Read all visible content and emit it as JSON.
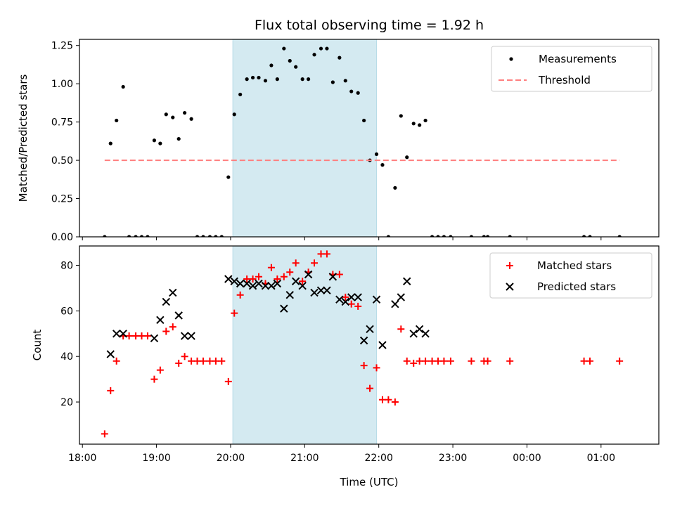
{
  "figure": {
    "title": "Flux total observing time = 1.92 h",
    "xlabel": "Time (UTC)",
    "x_tick_labels": [
      "18:00",
      "19:00",
      "20:00",
      "21:00",
      "22:00",
      "23:00",
      "00:00",
      "01:00"
    ]
  },
  "chart_data": [
    {
      "type": "scatter",
      "ylabel": "Matched/Predicted stars",
      "xlim_hours": [
        17.96,
        25.78
      ],
      "ylim": [
        0,
        1.29
      ],
      "y_ticks": [
        0.0,
        0.25,
        0.5,
        0.75,
        1.0,
        1.25
      ],
      "y_tick_labels": [
        "0.00",
        "0.25",
        "0.50",
        "0.75",
        "1.00",
        "1.25"
      ],
      "shaded_span_hours": [
        20.03,
        21.97
      ],
      "shaded_color": "#d4eaf1",
      "legend": {
        "placement": "upper right",
        "entries": [
          "Measurements",
          "Threshold"
        ]
      },
      "series": [
        {
          "name": "Measurements",
          "marker": "dot",
          "color": "#000000",
          "points": [
            [
              18.3,
              0.0
            ],
            [
              18.38,
              0.61
            ],
            [
              18.46,
              0.76
            ],
            [
              18.55,
              0.98
            ],
            [
              18.63,
              0.0
            ],
            [
              18.72,
              0.0
            ],
            [
              18.8,
              0.0
            ],
            [
              18.88,
              0.0
            ],
            [
              18.97,
              0.63
            ],
            [
              19.05,
              0.61
            ],
            [
              19.13,
              0.8
            ],
            [
              19.22,
              0.78
            ],
            [
              19.3,
              0.64
            ],
            [
              19.38,
              0.81
            ],
            [
              19.47,
              0.77
            ],
            [
              19.55,
              0.0
            ],
            [
              19.63,
              0.0
            ],
            [
              19.72,
              0.0
            ],
            [
              19.8,
              0.0
            ],
            [
              19.88,
              0.0
            ],
            [
              19.97,
              0.39
            ],
            [
              20.05,
              0.8
            ],
            [
              20.13,
              0.93
            ],
            [
              20.22,
              1.03
            ],
            [
              20.3,
              1.04
            ],
            [
              20.38,
              1.04
            ],
            [
              20.47,
              1.02
            ],
            [
              20.55,
              1.12
            ],
            [
              20.63,
              1.03
            ],
            [
              20.72,
              1.23
            ],
            [
              20.8,
              1.15
            ],
            [
              20.88,
              1.11
            ],
            [
              20.97,
              1.03
            ],
            [
              21.05,
              1.03
            ],
            [
              21.13,
              1.19
            ],
            [
              21.22,
              1.23
            ],
            [
              21.3,
              1.23
            ],
            [
              21.38,
              1.01
            ],
            [
              21.47,
              1.17
            ],
            [
              21.55,
              1.02
            ],
            [
              21.63,
              0.95
            ],
            [
              21.72,
              0.94
            ],
            [
              21.8,
              0.76
            ],
            [
              21.88,
              0.5
            ],
            [
              21.97,
              0.54
            ],
            [
              22.05,
              0.47
            ],
            [
              22.13,
              0.0
            ],
            [
              22.22,
              0.32
            ],
            [
              22.3,
              0.79
            ],
            [
              22.38,
              0.52
            ],
            [
              22.47,
              0.74
            ],
            [
              22.55,
              0.73
            ],
            [
              22.63,
              0.76
            ],
            [
              22.72,
              0.0
            ],
            [
              22.8,
              0.0
            ],
            [
              22.88,
              0.0
            ],
            [
              22.97,
              0.0
            ],
            [
              23.25,
              0.0
            ],
            [
              23.42,
              0.0
            ],
            [
              23.47,
              0.0
            ],
            [
              23.77,
              0.0
            ],
            [
              24.77,
              0.0
            ],
            [
              24.85,
              0.0
            ],
            [
              25.25,
              0.0
            ]
          ]
        },
        {
          "name": "Threshold",
          "line": "dashed",
          "color": "#ff7f7f",
          "points": [
            [
              18.3,
              0.5
            ],
            [
              25.25,
              0.5
            ]
          ]
        }
      ]
    },
    {
      "type": "scatter",
      "ylabel": "Count",
      "xlim_hours": [
        17.96,
        25.78
      ],
      "ylim": [
        1.5,
        88.5
      ],
      "y_ticks": [
        20,
        40,
        60,
        80
      ],
      "y_tick_labels": [
        "20",
        "40",
        "60",
        "80"
      ],
      "shaded_span_hours": [
        20.03,
        21.97
      ],
      "shaded_color": "#d4eaf1",
      "legend": {
        "placement": "upper right",
        "entries": [
          "Matched stars",
          "Predicted stars"
        ]
      },
      "series": [
        {
          "name": "Matched stars",
          "marker": "plus",
          "color": "#ff0000",
          "points": [
            [
              18.3,
              6
            ],
            [
              18.38,
              25
            ],
            [
              18.46,
              38
            ],
            [
              18.55,
              49
            ],
            [
              18.63,
              49
            ],
            [
              18.72,
              49
            ],
            [
              18.8,
              49
            ],
            [
              18.88,
              49
            ],
            [
              18.97,
              30
            ],
            [
              19.05,
              34
            ],
            [
              19.13,
              51
            ],
            [
              19.22,
              53
            ],
            [
              19.3,
              37
            ],
            [
              19.38,
              40
            ],
            [
              19.47,
              38
            ],
            [
              19.55,
              38
            ],
            [
              19.63,
              38
            ],
            [
              19.72,
              38
            ],
            [
              19.8,
              38
            ],
            [
              19.88,
              38
            ],
            [
              19.97,
              29
            ],
            [
              20.05,
              59
            ],
            [
              20.13,
              67
            ],
            [
              20.22,
              74
            ],
            [
              20.3,
              74
            ],
            [
              20.38,
              75
            ],
            [
              20.47,
              72
            ],
            [
              20.55,
              79
            ],
            [
              20.63,
              74
            ],
            [
              20.72,
              75
            ],
            [
              20.8,
              77
            ],
            [
              20.88,
              81
            ],
            [
              20.97,
              73
            ],
            [
              21.05,
              77
            ],
            [
              21.13,
              81
            ],
            [
              21.22,
              85
            ],
            [
              21.3,
              85
            ],
            [
              21.38,
              76
            ],
            [
              21.47,
              76
            ],
            [
              21.55,
              66
            ],
            [
              21.63,
              63
            ],
            [
              21.72,
              62
            ],
            [
              21.8,
              36
            ],
            [
              21.88,
              26
            ],
            [
              21.97,
              35
            ],
            [
              22.05,
              21
            ],
            [
              22.13,
              21
            ],
            [
              22.22,
              20
            ],
            [
              22.3,
              52
            ],
            [
              22.38,
              38
            ],
            [
              22.47,
              37
            ],
            [
              22.55,
              38
            ],
            [
              22.63,
              38
            ],
            [
              22.72,
              38
            ],
            [
              22.8,
              38
            ],
            [
              22.88,
              38
            ],
            [
              22.97,
              38
            ],
            [
              23.25,
              38
            ],
            [
              23.42,
              38
            ],
            [
              23.47,
              38
            ],
            [
              23.77,
              38
            ],
            [
              24.77,
              38
            ],
            [
              24.85,
              38
            ],
            [
              25.25,
              38
            ]
          ]
        },
        {
          "name": "Predicted stars",
          "marker": "x",
          "color": "#000000",
          "points": [
            [
              18.38,
              41
            ],
            [
              18.46,
              50
            ],
            [
              18.55,
              50
            ],
            [
              18.97,
              48
            ],
            [
              19.05,
              56
            ],
            [
              19.13,
              64
            ],
            [
              19.22,
              68
            ],
            [
              19.3,
              58
            ],
            [
              19.38,
              49
            ],
            [
              19.47,
              49
            ],
            [
              19.97,
              74
            ],
            [
              20.05,
              73
            ],
            [
              20.13,
              72
            ],
            [
              20.22,
              72
            ],
            [
              20.3,
              71
            ],
            [
              20.38,
              72
            ],
            [
              20.47,
              71
            ],
            [
              20.55,
              71
            ],
            [
              20.63,
              72
            ],
            [
              20.72,
              61
            ],
            [
              20.8,
              67
            ],
            [
              20.88,
              73
            ],
            [
              20.97,
              71
            ],
            [
              21.05,
              76
            ],
            [
              21.13,
              68
            ],
            [
              21.22,
              69
            ],
            [
              21.3,
              69
            ],
            [
              21.38,
              75
            ],
            [
              21.47,
              65
            ],
            [
              21.55,
              64
            ],
            [
              21.63,
              66
            ],
            [
              21.72,
              66
            ],
            [
              21.8,
              47
            ],
            [
              21.88,
              52
            ],
            [
              21.97,
              65
            ],
            [
              22.05,
              45
            ],
            [
              22.22,
              63
            ],
            [
              22.3,
              66
            ],
            [
              22.38,
              73
            ],
            [
              22.47,
              50
            ],
            [
              22.55,
              52
            ],
            [
              22.63,
              50
            ]
          ]
        }
      ]
    }
  ]
}
